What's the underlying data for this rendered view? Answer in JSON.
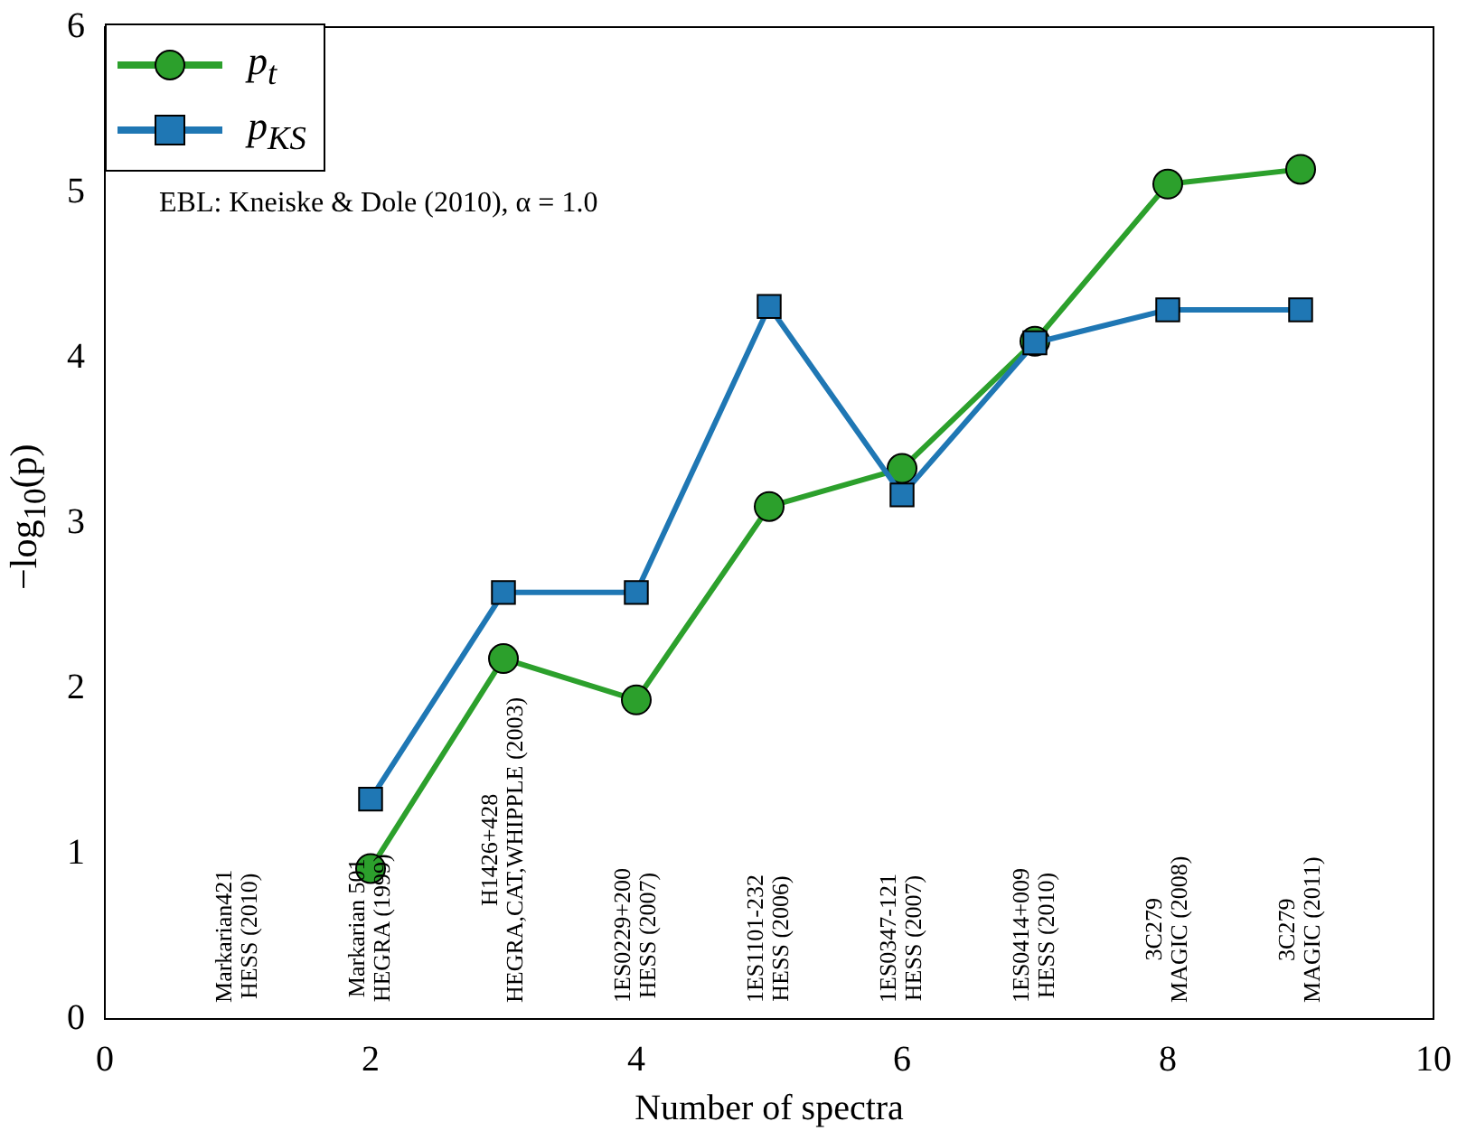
{
  "chart_data": {
    "type": "line",
    "xlabel": "Number of spectra",
    "ylabel": "−log$_{10}$(p)",
    "xlim": [
      0,
      10
    ],
    "xticks": [
      0,
      2,
      4,
      6,
      8,
      10
    ],
    "ylim": [
      0,
      6
    ],
    "yticks": [
      0,
      1,
      2,
      3,
      4,
      5,
      6
    ],
    "grid": false,
    "legend": "top left",
    "line_style": "solid",
    "series": [
      {
        "name": "p$_{t}$",
        "color": "#2ca02c",
        "marker": "circle",
        "x": [
          2,
          3,
          4,
          5,
          6,
          7,
          8,
          9
        ],
        "values": [
          0.91,
          2.18,
          1.93,
          3.1,
          3.33,
          4.1,
          5.05,
          5.14
        ]
      },
      {
        "name": "p$_{KS}$",
        "color": "#1f77b4",
        "marker": "square",
        "x": [
          2,
          3,
          4,
          5,
          6,
          7,
          8,
          9
        ],
        "values": [
          1.33,
          2.58,
          2.58,
          4.31,
          3.17,
          4.09,
          4.29,
          4.29
        ]
      }
    ],
    "annotations": [
      "EBL: Kneiske & Dole (2010), α = 1.0",
      "Markarian421\nHESS (2010)",
      "Markarian 501\nHEGRA (1999)",
      "H1426+428\nHEGRA,CAT,WHIPPLE (2003)",
      "1ES0229+200\nHESS (2007)",
      "1ES1101-232\nHESS (2006)",
      "1ES0347-121\nHESS (2007)",
      "1ES0414+009\nHESS (2010)",
      "3C279\nMAGIC (2008)",
      "3C279\nMAGIC (2011)"
    ]
  }
}
